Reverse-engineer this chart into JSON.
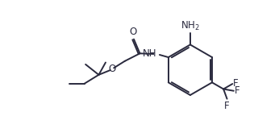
{
  "bg_color": "#ffffff",
  "line_color": "#2a2a3e",
  "line_width": 1.4,
  "font_size": 8.5,
  "fig_width": 3.46,
  "fig_height": 1.7,
  "dpi": 100,
  "xlim": [
    0,
    10
  ],
  "ylim": [
    0,
    5
  ]
}
